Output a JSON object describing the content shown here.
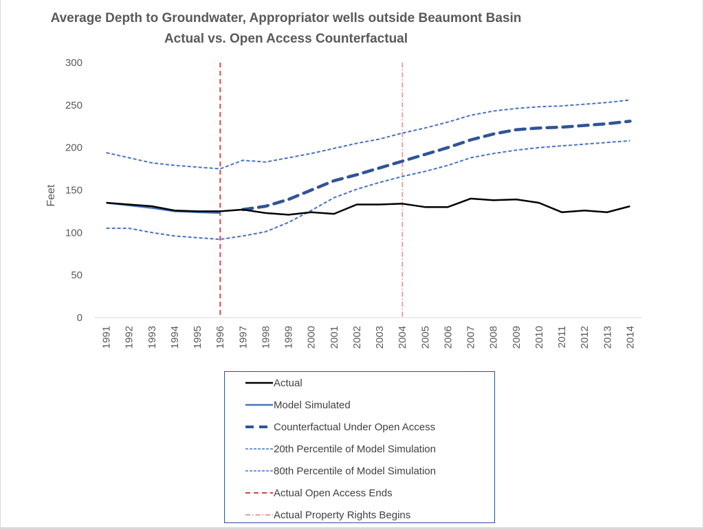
{
  "chart_data": {
    "type": "line",
    "title": "Average Depth to Groundwater, Appropriator wells outside Beaumont Basin",
    "subtitle": "Actual vs. Open Access Counterfactual",
    "xlabel": "",
    "ylabel": "Feet",
    "ylim": [
      0,
      300
    ],
    "yticks": [
      0,
      50,
      100,
      150,
      200,
      250,
      300
    ],
    "grid": false,
    "legend_position": "bottom",
    "categories": [
      "1991",
      "1992",
      "1993",
      "1994",
      "1995",
      "1996",
      "1997",
      "1998",
      "1999",
      "2000",
      "2001",
      "2002",
      "2003",
      "2004",
      "2005",
      "2006",
      "2007",
      "2008",
      "2009",
      "2010",
      "2011",
      "2012",
      "2013",
      "2014"
    ],
    "series": [
      {
        "name": "Actual",
        "color": "#000000",
        "style": "solid",
        "values": [
          135,
          133,
          131,
          126,
          125,
          125,
          127,
          123,
          121,
          124,
          122,
          133,
          133,
          134,
          130,
          130,
          140,
          138,
          139,
          135,
          124,
          126,
          124,
          131
        ]
      },
      {
        "name": "Model Simulated",
        "color": "#4472c4",
        "style": "solid",
        "values": [
          135,
          132,
          129,
          125,
          124,
          123,
          null,
          null,
          null,
          null,
          null,
          null,
          null,
          null,
          null,
          null,
          null,
          null,
          null,
          null,
          null,
          null,
          null,
          null
        ]
      },
      {
        "name": "Counterfactual Under Open Access",
        "color": "#2f5597",
        "style": "long-dash",
        "values": [
          null,
          null,
          null,
          null,
          null,
          null,
          127,
          131,
          139,
          150,
          161,
          168,
          176,
          184,
          192,
          200,
          209,
          216,
          221,
          223,
          224,
          226,
          228,
          231
        ]
      },
      {
        "name": "20th Percentile of Model Simulation",
        "color": "#4472c4",
        "style": "short-dash",
        "values": [
          105,
          105,
          100,
          96,
          94,
          92,
          96,
          101,
          112,
          126,
          141,
          151,
          159,
          166,
          172,
          179,
          188,
          193,
          197,
          200,
          202,
          204,
          206,
          208
        ]
      },
      {
        "name": "80th Percentile of Model Simulation",
        "color": "#4472c4",
        "style": "short-dash",
        "values": [
          194,
          188,
          182,
          179,
          177,
          175,
          185,
          183,
          188,
          193,
          199,
          205,
          210,
          217,
          223,
          230,
          238,
          243,
          246,
          248,
          249,
          251,
          253,
          256
        ]
      }
    ],
    "vertical_markers": [
      {
        "name": "Actual Open Access Ends",
        "x": "1996",
        "color": "#c00000",
        "style": "dash"
      },
      {
        "name": "Actual Property Rights Begins",
        "x": "2004",
        "color": "#e07b7b",
        "style": "dash-dot"
      }
    ],
    "legend": [
      {
        "label": "Actual",
        "color": "#000000",
        "style": "solid"
      },
      {
        "label": "Model Simulated",
        "color": "#4472c4",
        "style": "solid"
      },
      {
        "label": "Counterfactual Under Open Access",
        "color": "#2f5597",
        "style": "long-dash"
      },
      {
        "label": "20th Percentile of Model Simulation",
        "color": "#4472c4",
        "style": "short-dash"
      },
      {
        "label": "80th Percentile of Model Simulation",
        "color": "#4472c4",
        "style": "short-dash"
      },
      {
        "label": "Actual Open Access Ends",
        "color": "#c00000",
        "style": "dash"
      },
      {
        "label": "Actual Property Rights Begins",
        "color": "#e07b7b",
        "style": "dash-dot"
      }
    ]
  }
}
